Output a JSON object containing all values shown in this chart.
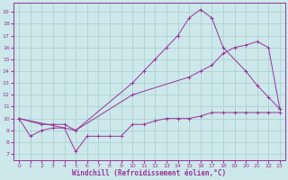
{
  "xlabel": "Windchill (Refroidissement éolien,°C)",
  "x_ticks": [
    0,
    1,
    2,
    3,
    4,
    5,
    6,
    7,
    8,
    9,
    10,
    11,
    12,
    13,
    14,
    15,
    16,
    17,
    18,
    19,
    20,
    21,
    22,
    23
  ],
  "y_ticks": [
    7,
    8,
    9,
    10,
    11,
    12,
    13,
    14,
    15,
    16,
    17,
    18,
    19
  ],
  "ylim": [
    6.5,
    19.8
  ],
  "xlim": [
    -0.5,
    23.5
  ],
  "bg_color": "#cce8ea",
  "grid_color": "#aaccce",
  "line_color": "#993399",
  "line1_x": [
    0,
    1,
    2,
    3,
    4,
    5,
    6,
    7,
    8,
    9,
    10,
    11,
    12,
    13,
    14,
    15,
    16,
    17,
    18,
    19,
    20,
    21,
    22,
    23
  ],
  "line1_y": [
    10,
    8.5,
    9.0,
    9.2,
    9.2,
    7.2,
    8.5,
    8.5,
    8.5,
    8.5,
    9.5,
    9.5,
    9.8,
    10.0,
    10.0,
    10.0,
    10.2,
    10.5,
    10.5,
    10.5,
    10.5,
    10.5,
    10.5,
    10.5
  ],
  "line2_x": [
    0,
    2,
    3,
    4,
    5,
    10,
    11,
    12,
    13,
    14,
    15,
    16,
    17,
    18,
    20,
    21,
    22,
    23
  ],
  "line2_y": [
    10,
    9.5,
    9.5,
    9.5,
    9.0,
    13.0,
    14.0,
    15.0,
    16.0,
    17.0,
    18.5,
    19.2,
    18.5,
    16.0,
    14.0,
    12.8,
    11.8,
    10.8
  ],
  "line3_x": [
    0,
    5,
    10,
    15,
    16,
    17,
    18,
    19,
    20,
    21,
    22,
    23
  ],
  "line3_y": [
    10,
    9.0,
    12.0,
    13.5,
    14.0,
    14.5,
    15.5,
    16.0,
    16.2,
    16.5,
    16.0,
    10.8
  ]
}
